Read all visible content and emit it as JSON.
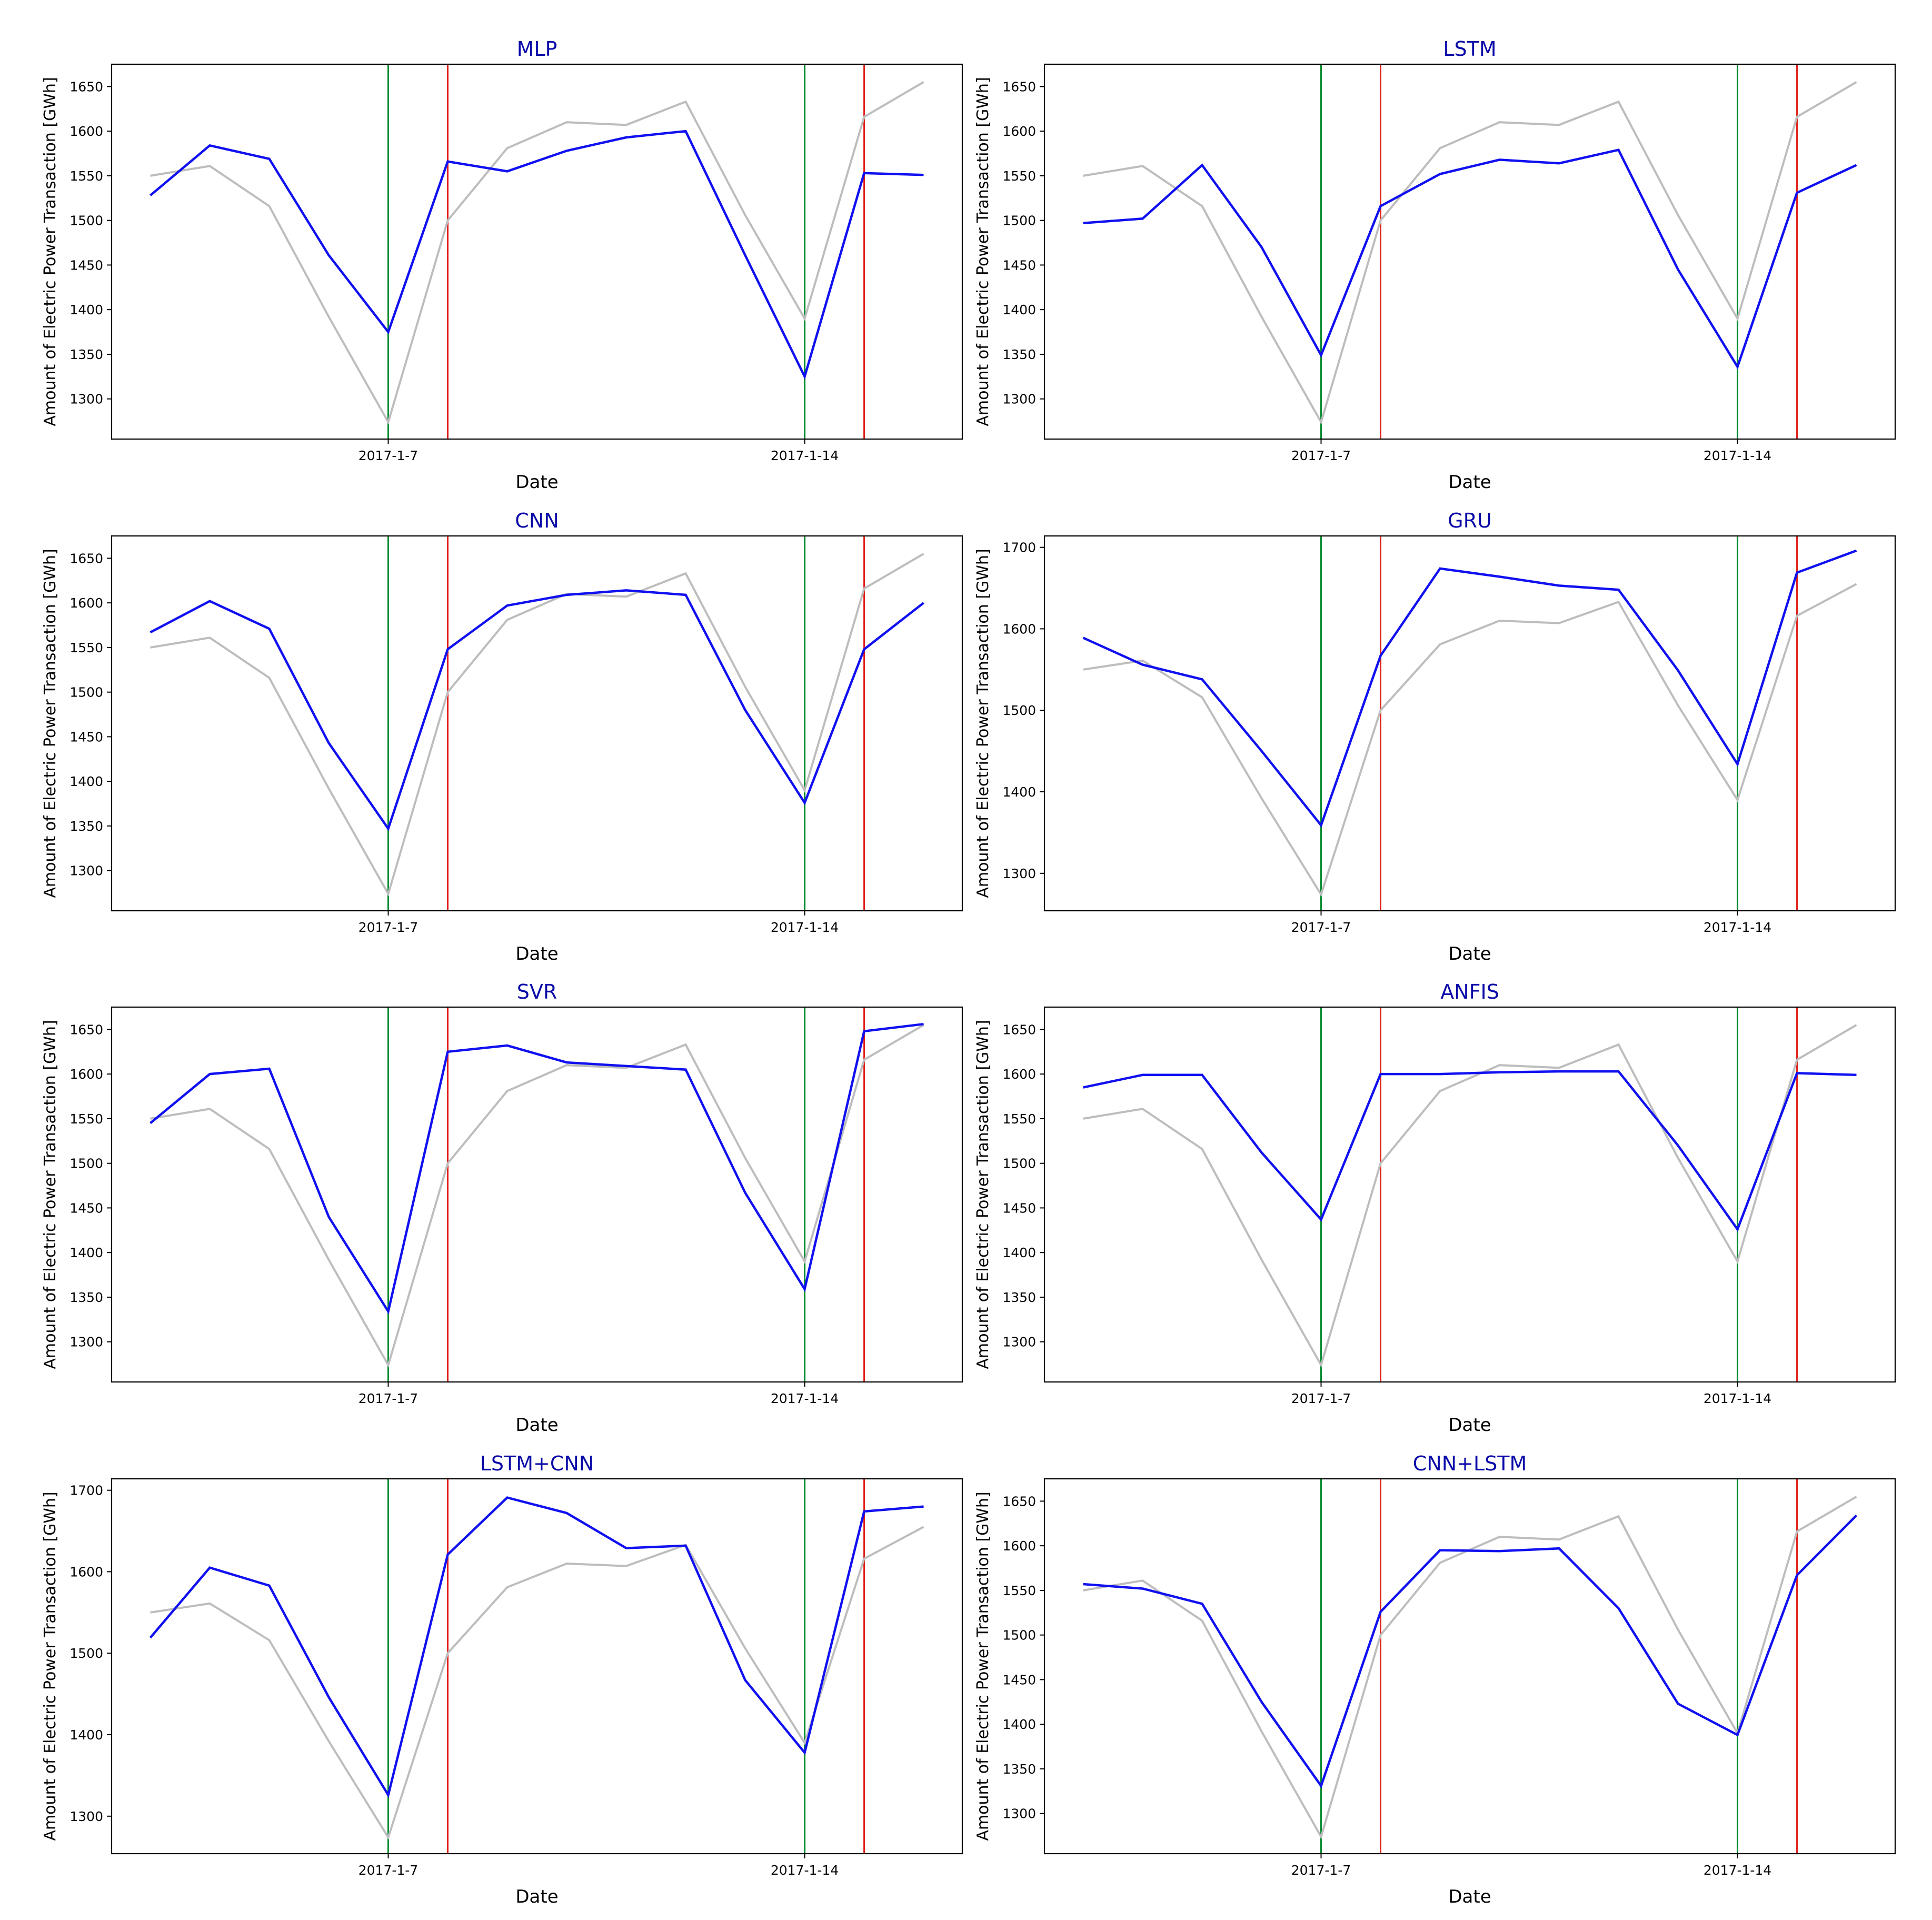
{
  "colors": {
    "actual": "#bdbdbd",
    "predicted": "#1010f0",
    "green_line": "#008a2e",
    "red_line": "#e0211b",
    "title": "#0a0aa8",
    "frame": "#000000"
  },
  "legend": "none",
  "grid": false,
  "chart_data": [
    {
      "type": "line",
      "title": "MLP",
      "xlabel": "Date",
      "ylabel": "Amount of Electric Power Transaction [GWh]",
      "x_tick_labels": [
        "2017-1-7",
        "2017-1-14"
      ],
      "x_tick_positions": [
        4,
        11
      ],
      "yticks": [
        1300,
        1350,
        1400,
        1450,
        1500,
        1550,
        1600,
        1650
      ],
      "ylim": [
        1255,
        1675
      ],
      "xlim": [
        -0.65,
        13.65
      ],
      "vlines": [
        {
          "x": 4,
          "color": "green"
        },
        {
          "x": 5,
          "color": "red"
        },
        {
          "x": 11,
          "color": "green"
        },
        {
          "x": 12,
          "color": "red"
        }
      ],
      "x": [
        0,
        1,
        2,
        3,
        4,
        5,
        6,
        7,
        8,
        9,
        10,
        11,
        12,
        13
      ],
      "series": [
        {
          "role": "actual",
          "values": [
            1550,
            1561,
            1516,
            1392,
            1274,
            1500,
            1581,
            1610,
            1607,
            1633,
            1506,
            1390,
            1616,
            1655
          ]
        },
        {
          "role": "predicted",
          "values": [
            1528,
            1584,
            1569,
            1461,
            1375,
            1566,
            1555,
            1578,
            1593,
            1600,
            1461,
            1325,
            1553,
            1551
          ]
        }
      ]
    },
    {
      "type": "line",
      "title": "LSTM",
      "xlabel": "Date",
      "ylabel": "Amount of Electric Power Transaction [GWh]",
      "x_tick_labels": [
        "2017-1-7",
        "2017-1-14"
      ],
      "x_tick_positions": [
        4,
        11
      ],
      "yticks": [
        1300,
        1350,
        1400,
        1450,
        1500,
        1550,
        1600,
        1650
      ],
      "ylim": [
        1255,
        1675
      ],
      "xlim": [
        -0.65,
        13.65
      ],
      "vlines": [
        {
          "x": 4,
          "color": "green"
        },
        {
          "x": 5,
          "color": "red"
        },
        {
          "x": 11,
          "color": "green"
        },
        {
          "x": 12,
          "color": "red"
        }
      ],
      "x": [
        0,
        1,
        2,
        3,
        4,
        5,
        6,
        7,
        8,
        9,
        10,
        11,
        12,
        13
      ],
      "series": [
        {
          "role": "actual",
          "values": [
            1550,
            1561,
            1516,
            1392,
            1274,
            1500,
            1581,
            1610,
            1607,
            1633,
            1506,
            1390,
            1616,
            1655
          ]
        },
        {
          "role": "predicted",
          "values": [
            1497,
            1502,
            1562,
            1470,
            1349,
            1516,
            1552,
            1568,
            1564,
            1579,
            1445,
            1336,
            1531,
            1562
          ]
        }
      ]
    },
    {
      "type": "line",
      "title": "CNN",
      "xlabel": "Date",
      "ylabel": "Amount of Electric Power Transaction [GWh]",
      "x_tick_labels": [
        "2017-1-7",
        "2017-1-14"
      ],
      "x_tick_positions": [
        4,
        11
      ],
      "yticks": [
        1300,
        1350,
        1400,
        1450,
        1500,
        1550,
        1600,
        1650
      ],
      "ylim": [
        1255,
        1675
      ],
      "xlim": [
        -0.65,
        13.65
      ],
      "vlines": [
        {
          "x": 4,
          "color": "green"
        },
        {
          "x": 5,
          "color": "red"
        },
        {
          "x": 11,
          "color": "green"
        },
        {
          "x": 12,
          "color": "red"
        }
      ],
      "x": [
        0,
        1,
        2,
        3,
        4,
        5,
        6,
        7,
        8,
        9,
        10,
        11,
        12,
        13
      ],
      "series": [
        {
          "role": "actual",
          "values": [
            1550,
            1561,
            1516,
            1392,
            1274,
            1500,
            1581,
            1610,
            1607,
            1633,
            1506,
            1390,
            1616,
            1655
          ]
        },
        {
          "role": "predicted",
          "values": [
            1567,
            1602,
            1571,
            1443,
            1347,
            1548,
            1597,
            1609,
            1614,
            1609,
            1480,
            1376,
            1548,
            1600
          ]
        }
      ]
    },
    {
      "type": "line",
      "title": "GRU",
      "xlabel": "Date",
      "ylabel": "Amount of Electric Power Transaction [GWh]",
      "x_tick_labels": [
        "2017-1-7",
        "2017-1-14"
      ],
      "x_tick_positions": [
        4,
        11
      ],
      "yticks": [
        1300,
        1400,
        1500,
        1600,
        1700
      ],
      "ylim": [
        1254,
        1714
      ],
      "xlim": [
        -0.65,
        13.65
      ],
      "vlines": [
        {
          "x": 4,
          "color": "green"
        },
        {
          "x": 5,
          "color": "red"
        },
        {
          "x": 11,
          "color": "green"
        },
        {
          "x": 12,
          "color": "red"
        }
      ],
      "x": [
        0,
        1,
        2,
        3,
        4,
        5,
        6,
        7,
        8,
        9,
        10,
        11,
        12,
        13
      ],
      "series": [
        {
          "role": "actual",
          "values": [
            1550,
            1561,
            1516,
            1392,
            1274,
            1500,
            1581,
            1610,
            1607,
            1633,
            1506,
            1390,
            1616,
            1655
          ]
        },
        {
          "role": "predicted",
          "values": [
            1589,
            1556,
            1538,
            1450,
            1359,
            1567,
            1674,
            1664,
            1653,
            1648,
            1549,
            1434,
            1669,
            1696
          ]
        }
      ]
    },
    {
      "type": "line",
      "title": "SVR",
      "xlabel": "Date",
      "ylabel": "Amount of Electric Power Transaction [GWh]",
      "x_tick_labels": [
        "2017-1-7",
        "2017-1-14"
      ],
      "x_tick_positions": [
        4,
        11
      ],
      "yticks": [
        1300,
        1350,
        1400,
        1450,
        1500,
        1550,
        1600,
        1650
      ],
      "ylim": [
        1255,
        1675
      ],
      "xlim": [
        -0.65,
        13.65
      ],
      "vlines": [
        {
          "x": 4,
          "color": "green"
        },
        {
          "x": 5,
          "color": "red"
        },
        {
          "x": 11,
          "color": "green"
        },
        {
          "x": 12,
          "color": "red"
        }
      ],
      "x": [
        0,
        1,
        2,
        3,
        4,
        5,
        6,
        7,
        8,
        9,
        10,
        11,
        12,
        13
      ],
      "series": [
        {
          "role": "actual",
          "values": [
            1550,
            1561,
            1516,
            1392,
            1274,
            1500,
            1581,
            1610,
            1607,
            1633,
            1506,
            1390,
            1616,
            1655
          ]
        },
        {
          "role": "predicted",
          "values": [
            1545,
            1600,
            1606,
            1440,
            1334,
            1625,
            1632,
            1613,
            1609,
            1605,
            1467,
            1359,
            1648,
            1656
          ]
        }
      ]
    },
    {
      "type": "line",
      "title": "ANFIS",
      "xlabel": "Date",
      "ylabel": "Amount of Electric Power Transaction [GWh]",
      "x_tick_labels": [
        "2017-1-7",
        "2017-1-14"
      ],
      "x_tick_positions": [
        4,
        11
      ],
      "yticks": [
        1300,
        1350,
        1400,
        1450,
        1500,
        1550,
        1600,
        1650
      ],
      "ylim": [
        1255,
        1675
      ],
      "xlim": [
        -0.65,
        13.65
      ],
      "vlines": [
        {
          "x": 4,
          "color": "green"
        },
        {
          "x": 5,
          "color": "red"
        },
        {
          "x": 11,
          "color": "green"
        },
        {
          "x": 12,
          "color": "red"
        }
      ],
      "x": [
        0,
        1,
        2,
        3,
        4,
        5,
        6,
        7,
        8,
        9,
        10,
        11,
        12,
        13
      ],
      "series": [
        {
          "role": "actual",
          "values": [
            1550,
            1561,
            1516,
            1392,
            1274,
            1500,
            1581,
            1610,
            1607,
            1633,
            1506,
            1390,
            1616,
            1655
          ]
        },
        {
          "role": "predicted",
          "values": [
            1585,
            1599,
            1599,
            1512,
            1437,
            1600,
            1600,
            1602,
            1603,
            1603,
            1520,
            1426,
            1601,
            1599
          ]
        }
      ]
    },
    {
      "type": "line",
      "title": "LSTM+CNN",
      "xlabel": "Date",
      "ylabel": "Amount of Electric Power Transaction [GWh]",
      "x_tick_labels": [
        "2017-1-7",
        "2017-1-14"
      ],
      "x_tick_positions": [
        4,
        11
      ],
      "yticks": [
        1300,
        1400,
        1500,
        1600,
        1700
      ],
      "ylim": [
        1254,
        1714
      ],
      "xlim": [
        -0.65,
        13.65
      ],
      "vlines": [
        {
          "x": 4,
          "color": "green"
        },
        {
          "x": 5,
          "color": "red"
        },
        {
          "x": 11,
          "color": "green"
        },
        {
          "x": 12,
          "color": "red"
        }
      ],
      "x": [
        0,
        1,
        2,
        3,
        4,
        5,
        6,
        7,
        8,
        9,
        10,
        11,
        12,
        13
      ],
      "series": [
        {
          "role": "actual",
          "values": [
            1550,
            1561,
            1516,
            1392,
            1274,
            1500,
            1581,
            1610,
            1607,
            1633,
            1506,
            1390,
            1616,
            1655
          ]
        },
        {
          "role": "predicted",
          "values": [
            1519,
            1605,
            1583,
            1446,
            1326,
            1621,
            1691,
            1672,
            1629,
            1632,
            1467,
            1378,
            1674,
            1680
          ]
        }
      ]
    },
    {
      "type": "line",
      "title": "CNN+LSTM",
      "xlabel": "Date",
      "ylabel": "Amount of Electric Power Transaction [GWh]",
      "x_tick_labels": [
        "2017-1-7",
        "2017-1-14"
      ],
      "x_tick_positions": [
        4,
        11
      ],
      "yticks": [
        1300,
        1350,
        1400,
        1450,
        1500,
        1550,
        1600,
        1650
      ],
      "ylim": [
        1255,
        1675
      ],
      "xlim": [
        -0.65,
        13.65
      ],
      "vlines": [
        {
          "x": 4,
          "color": "green"
        },
        {
          "x": 5,
          "color": "red"
        },
        {
          "x": 11,
          "color": "green"
        },
        {
          "x": 12,
          "color": "red"
        }
      ],
      "x": [
        0,
        1,
        2,
        3,
        4,
        5,
        6,
        7,
        8,
        9,
        10,
        11,
        12,
        13
      ],
      "series": [
        {
          "role": "actual",
          "values": [
            1550,
            1561,
            1516,
            1392,
            1274,
            1500,
            1581,
            1610,
            1607,
            1633,
            1506,
            1390,
            1616,
            1655
          ]
        },
        {
          "role": "predicted",
          "values": [
            1557,
            1552,
            1535,
            1425,
            1331,
            1526,
            1595,
            1594,
            1597,
            1530,
            1423,
            1388,
            1567,
            1634
          ]
        }
      ]
    }
  ]
}
